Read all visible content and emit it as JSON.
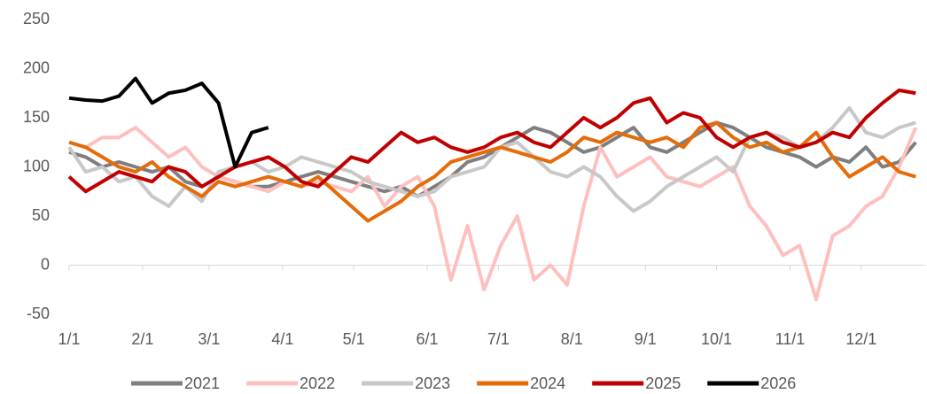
{
  "chart_data": {
    "type": "line",
    "x": [
      0,
      7,
      14,
      21,
      28,
      35,
      42,
      49,
      56,
      63,
      70,
      77,
      84,
      91,
      98,
      105,
      112,
      119,
      126,
      133,
      140,
      147,
      154,
      161,
      168,
      175,
      182,
      189,
      196,
      203,
      210,
      217,
      224,
      231,
      238,
      245,
      252,
      259,
      266,
      273,
      280,
      287,
      294,
      301,
      308,
      315,
      322,
      329,
      336,
      343,
      350,
      357
    ],
    "xlim": [
      0,
      361
    ],
    "xticks": [
      {
        "value": 0,
        "label": "1/1"
      },
      {
        "value": 31,
        "label": "2/1"
      },
      {
        "value": 59,
        "label": "3/1"
      },
      {
        "value": 90,
        "label": "4/1"
      },
      {
        "value": 120,
        "label": "5/1"
      },
      {
        "value": 151,
        "label": "6/1"
      },
      {
        "value": 181,
        "label": "7/1"
      },
      {
        "value": 212,
        "label": "8/1"
      },
      {
        "value": 243,
        "label": "9/1"
      },
      {
        "value": 273,
        "label": "10/1"
      },
      {
        "value": 304,
        "label": "11/1"
      },
      {
        "value": 334,
        "label": "12/1"
      }
    ],
    "ylim": [
      -50,
      250
    ],
    "yticks": [
      -50,
      0,
      50,
      100,
      150,
      200,
      250
    ],
    "grid": false,
    "legend": "bottom",
    "series": [
      {
        "name": "2021",
        "color": "#7f7f7f",
        "values": [
          115,
          110,
          100,
          105,
          100,
          95,
          100,
          85,
          80,
          90,
          85,
          80,
          80,
          85,
          90,
          95,
          90,
          85,
          80,
          75,
          80,
          70,
          80,
          90,
          105,
          110,
          120,
          130,
          140,
          135,
          125,
          115,
          120,
          130,
          140,
          120,
          115,
          125,
          135,
          145,
          140,
          130,
          120,
          115,
          110,
          100,
          110,
          105,
          120,
          100,
          105,
          125
        ]
      },
      {
        "name": "2022",
        "color": "#ffbfbf",
        "values": [
          125,
          120,
          130,
          130,
          140,
          125,
          110,
          120,
          100,
          90,
          85,
          80,
          75,
          85,
          80,
          85,
          80,
          75,
          90,
          60,
          80,
          90,
          60,
          -15,
          40,
          -25,
          20,
          50,
          -15,
          0,
          -20,
          60,
          120,
          90,
          100,
          110,
          90,
          85,
          80,
          90,
          100,
          60,
          40,
          10,
          20,
          -35,
          30,
          40,
          60,
          70,
          100,
          140
        ]
      },
      {
        "name": "2023",
        "color": "#c8c8c8",
        "values": [
          120,
          95,
          100,
          85,
          90,
          70,
          60,
          80,
          65,
          95,
          100,
          105,
          95,
          100,
          110,
          105,
          100,
          95,
          85,
          80,
          75,
          70,
          75,
          90,
          95,
          100,
          120,
          125,
          110,
          95,
          90,
          100,
          90,
          70,
          55,
          65,
          80,
          90,
          100,
          110,
          95,
          130,
          135,
          130,
          120,
          125,
          140,
          160,
          135,
          130,
          140,
          145
        ]
      },
      {
        "name": "2024",
        "color": "#e46c0a",
        "values": [
          125,
          120,
          110,
          100,
          95,
          105,
          90,
          80,
          70,
          85,
          80,
          85,
          90,
          85,
          80,
          90,
          75,
          60,
          45,
          55,
          65,
          80,
          90,
          105,
          110,
          115,
          120,
          115,
          110,
          105,
          115,
          130,
          125,
          135,
          130,
          125,
          130,
          120,
          140,
          145,
          130,
          120,
          125,
          115,
          120,
          135,
          110,
          90,
          100,
          110,
          95,
          90
        ]
      },
      {
        "name": "2025",
        "color": "#c00000",
        "values": [
          90,
          75,
          85,
          95,
          90,
          85,
          100,
          95,
          80,
          90,
          100,
          105,
          110,
          100,
          85,
          80,
          95,
          110,
          105,
          120,
          135,
          125,
          130,
          120,
          115,
          120,
          130,
          135,
          125,
          120,
          135,
          150,
          140,
          150,
          165,
          170,
          145,
          155,
          150,
          130,
          120,
          130,
          135,
          125,
          120,
          125,
          135,
          130,
          150,
          165,
          178,
          175
        ]
      },
      {
        "name": "2026",
        "color": "#000000",
        "values": [
          170,
          168,
          167,
          172,
          190,
          165,
          175,
          178,
          185,
          165,
          100,
          135,
          140,
          null,
          null,
          null,
          null,
          null,
          null,
          null,
          null,
          null,
          null,
          null,
          null,
          null,
          null,
          null,
          null,
          null,
          null,
          null,
          null,
          null,
          null,
          null,
          null,
          null,
          null,
          null,
          null,
          null,
          null,
          null,
          null,
          null,
          null,
          null,
          null,
          null,
          null,
          null
        ]
      }
    ]
  }
}
